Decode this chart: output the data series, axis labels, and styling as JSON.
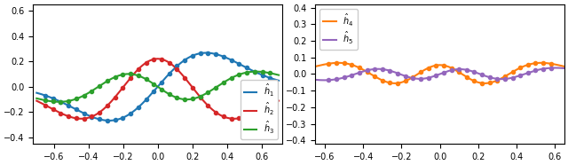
{
  "xlim1": [
    -0.72,
    0.72
  ],
  "ylim1": [
    -0.45,
    0.65
  ],
  "xlim2": [
    -0.65,
    0.65
  ],
  "ylim2": [
    -0.42,
    0.42
  ],
  "legend1": [
    {
      "label": "$\\hat{h}_1$",
      "color": "#1f77b4"
    },
    {
      "label": "$\\hat{h}_2$",
      "color": "#d62728"
    },
    {
      "label": "$\\hat{h}_3$",
      "color": "#2ca02c"
    }
  ],
  "legend2": [
    {
      "label": "$\\hat{h}_4$",
      "color": "#ff7f0e"
    },
    {
      "label": "$\\hat{h}_5$",
      "color": "#9467bd"
    }
  ],
  "n_smooth": 400,
  "n_dots": 30,
  "figsize": [
    6.4,
    1.86
  ],
  "dpi": 100
}
